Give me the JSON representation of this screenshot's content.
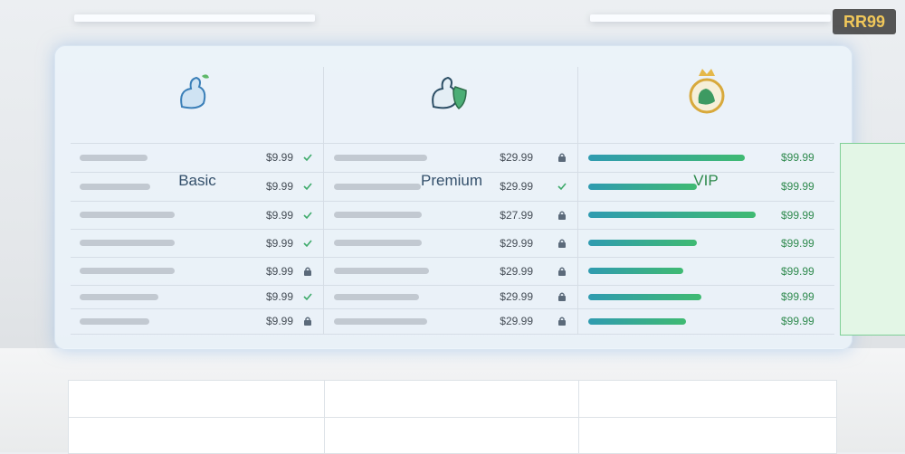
{
  "brand": "RR99",
  "plans": [
    {
      "name": "Basic",
      "prices": [
        "$9.99",
        "$9.99",
        "$9.99",
        "$9.99",
        "$9.99",
        "$9.99",
        "$9.99"
      ]
    },
    {
      "name": "Premium",
      "prices": [
        "$29.99",
        "$29.99",
        "$27.99",
        "$29.99",
        "$29.99",
        "$29.99",
        "$29.99"
      ]
    },
    {
      "name": "VIP",
      "prices": [
        "$99.99",
        "$99.99",
        "$99.99",
        "$99.99",
        "$99.99",
        "$99.99",
        "$99.99"
      ]
    }
  ]
}
